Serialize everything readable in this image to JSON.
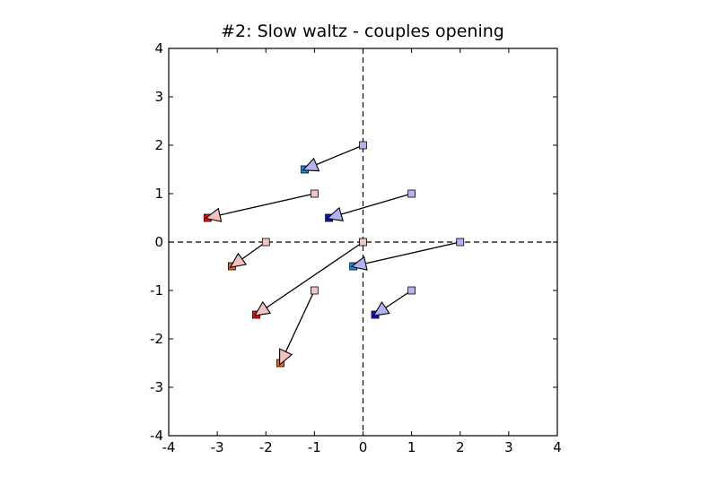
{
  "chart_data": {
    "type": "scatter",
    "title": "#2: Slow waltz - couples opening",
    "xlabel": "",
    "ylabel": "",
    "xlim": [
      -4,
      4
    ],
    "ylim": [
      -4,
      4
    ],
    "xticks": [
      -4,
      -3,
      -2,
      -1,
      0,
      1,
      2,
      3,
      4
    ],
    "yticks": [
      -4,
      -3,
      -2,
      -1,
      0,
      1,
      2,
      3,
      4
    ],
    "xtick_labels": [
      "-4",
      "-3",
      "-2",
      "-1",
      "0",
      "1",
      "2",
      "3",
      "4"
    ],
    "ytick_labels": [
      "-4",
      "-3",
      "-2",
      "-1",
      "0",
      "1",
      "2",
      "3",
      "4"
    ],
    "grid": false,
    "reference_lines": {
      "x": 0,
      "y": 0,
      "style": "dashed"
    },
    "moves": [
      {
        "from": [
          0,
          2
        ],
        "to": [
          -1.2,
          1.5
        ],
        "start_color": "#b3b3f2",
        "end_color": "#1a8fe0",
        "arrow_color": "#b3b3f2"
      },
      {
        "from": [
          -1,
          1
        ],
        "to": [
          -3.2,
          0.5
        ],
        "start_color": "#f2c4c4",
        "end_color": "#ee1111",
        "arrow_color": "#f5c2c2"
      },
      {
        "from": [
          1,
          1
        ],
        "to": [
          -0.7,
          0.5
        ],
        "start_color": "#b3b3f2",
        "end_color": "#1111dd",
        "arrow_color": "#b3b3f2"
      },
      {
        "from": [
          -2,
          0
        ],
        "to": [
          -2.7,
          -0.5
        ],
        "start_color": "#f2c4c4",
        "end_color": "#ee6611",
        "arrow_color": "#f5c2c2"
      },
      {
        "from": [
          0,
          0
        ],
        "to": [
          -2.2,
          -1.5
        ],
        "start_color": "#f2c4c4",
        "end_color": "#ee1111",
        "arrow_color": "#f5c2c2"
      },
      {
        "from": [
          2,
          0
        ],
        "to": [
          -0.2,
          -0.5
        ],
        "start_color": "#b3b3f2",
        "end_color": "#1a8fe0",
        "arrow_color": "#b3b3f2"
      },
      {
        "from": [
          1,
          -1
        ],
        "to": [
          0.25,
          -1.5
        ],
        "start_color": "#b3b3f2",
        "end_color": "#1111dd",
        "arrow_color": "#b3b3f2"
      },
      {
        "from": [
          -1,
          -1
        ],
        "to": [
          -1.7,
          -2.5
        ],
        "start_color": "#f2c4c4",
        "end_color": "#ee6611",
        "arrow_color": "#f5c2c2"
      }
    ]
  }
}
